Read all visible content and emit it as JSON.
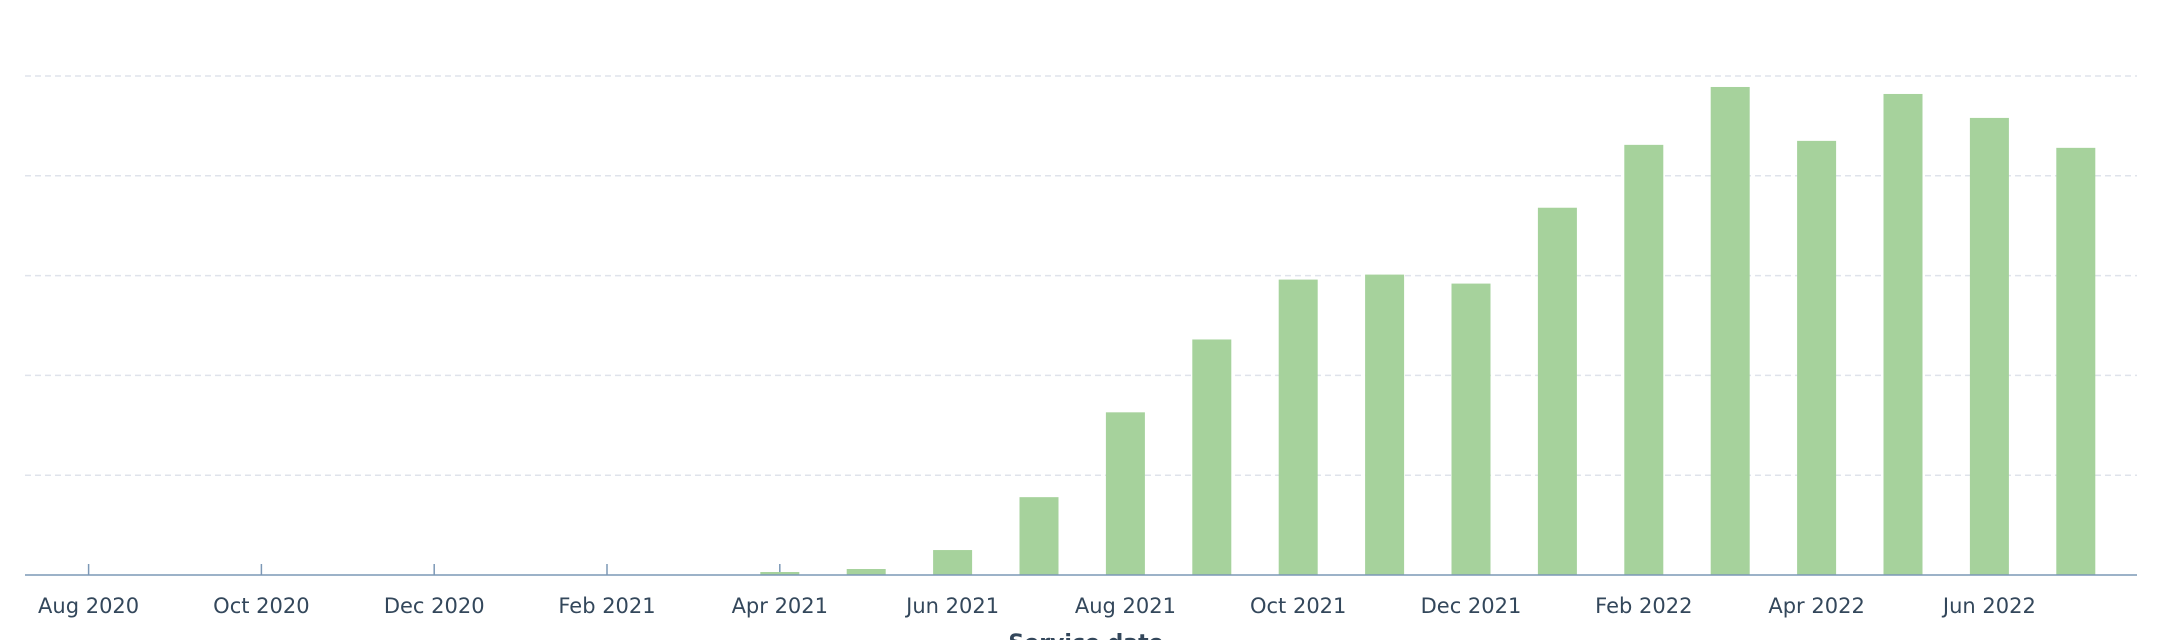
{
  "chart_data": {
    "type": "bar",
    "x_label": "Service date",
    "categories": [
      "Aug 2020",
      null,
      "Oct 2020",
      null,
      "Dec 2020",
      null,
      "Feb 2021",
      null,
      "Apr 2021",
      null,
      "Jun 2021",
      null,
      "Aug 2021",
      null,
      "Oct 2021",
      null,
      "Dec 2021",
      null,
      "Feb 2022",
      null,
      "Apr 2022",
      null,
      "Jun 2022",
      null
    ],
    "values": [
      null,
      null,
      null,
      null,
      null,
      null,
      null,
      null,
      0.03,
      0.06,
      0.25,
      0.78,
      1.63,
      2.36,
      2.96,
      3.01,
      2.92,
      3.68,
      4.31,
      4.89,
      4.35,
      4.82,
      4.58,
      4.28
    ],
    "color": "#a6d29c",
    "ylim": [
      0,
      5
    ],
    "yticks": [
      1,
      2,
      3,
      4,
      5
    ],
    "grid": true
  }
}
